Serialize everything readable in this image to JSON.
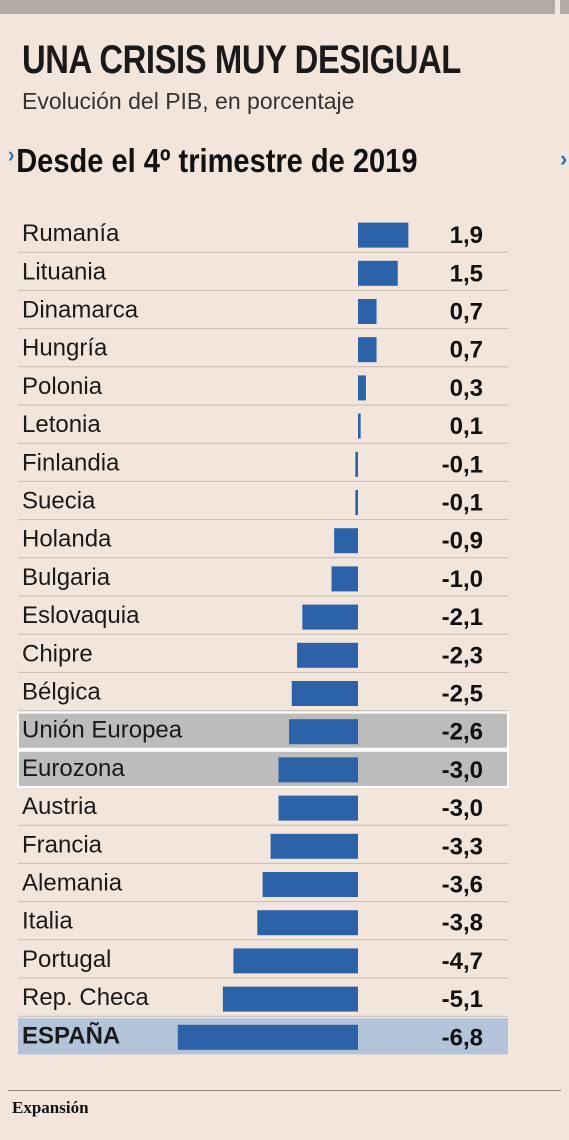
{
  "header": {
    "title": "UNA CRISIS MUY DESIGUAL",
    "subtitle": "Evolución del PIB, en porcentaje"
  },
  "section": {
    "title": "Desde el 4º trimestre de 2019",
    "arrow": "›",
    "next_arrow": "›"
  },
  "footer": {
    "source": "Expansión"
  },
  "colors": {
    "background": "#f2e6dc",
    "bar": "#2c62a8",
    "highlight_gray": "#bcbcbc",
    "highlight_spain": "#b3c3da",
    "accent": "#2c6fb8"
  },
  "chart_data": {
    "type": "bar",
    "orientation": "horizontal",
    "categories": [
      "Rumanía",
      "Lituania",
      "Dinamarca",
      "Hungría",
      "Polonia",
      "Letonia",
      "Finlandia",
      "Suecia",
      "Holanda",
      "Bulgaria",
      "Eslovaquia",
      "Chipre",
      "Bélgica",
      "Unión Europea",
      "Eurozona",
      "Austria",
      "Francia",
      "Alemania",
      "Italia",
      "Portugal",
      "Rep. Checa",
      "ESPAÑA"
    ],
    "values": [
      1.9,
      1.5,
      0.7,
      0.7,
      0.3,
      0.1,
      -0.1,
      -0.1,
      -0.9,
      -1.0,
      -2.1,
      -2.3,
      -2.5,
      -2.6,
      -3.0,
      -3.0,
      -3.3,
      -3.6,
      -3.8,
      -4.7,
      -5.1,
      -6.8
    ],
    "value_labels": [
      "1,9",
      "1,5",
      "0,7",
      "0,7",
      "0,3",
      "0,1",
      "-0,1",
      "-0,1",
      "-0,9",
      "-1,0",
      "-2,1",
      "-2,3",
      "-2,5",
      "-2,6",
      "-3,0",
      "-3,0",
      "-3,3",
      "-3,6",
      "-3,8",
      "-4,7",
      "-5,1",
      "-6,8"
    ],
    "highlight_gray": [
      "Unión Europea",
      "Eurozona"
    ],
    "highlight_spain": [
      "ESPAÑA"
    ],
    "grid": false
  }
}
